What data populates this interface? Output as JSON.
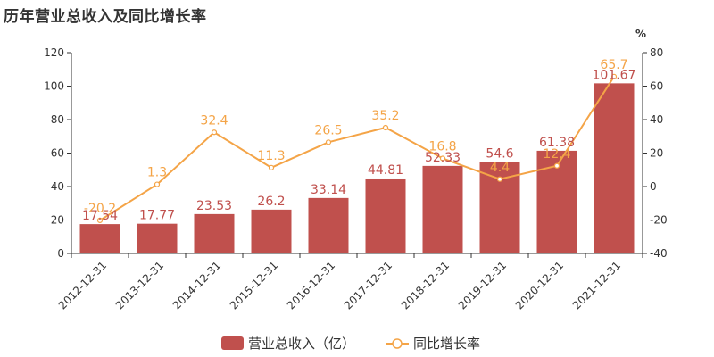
{
  "title": "历年营业总收入及同比增长率",
  "chart_data": {
    "type": "bar",
    "categories": [
      "2012-12-31",
      "2013-12-31",
      "2014-12-31",
      "2015-12-31",
      "2016-12-31",
      "2017-12-31",
      "2018-12-31",
      "2019-12-31",
      "2020-12-31",
      "2021-12-31"
    ],
    "series": [
      {
        "name": "营业总收入（亿）",
        "type": "bar",
        "axis": "left",
        "color": "#c0504d",
        "values": [
          17.54,
          17.77,
          23.53,
          26.2,
          33.14,
          44.81,
          52.33,
          54.6,
          61.38,
          101.67
        ],
        "labels": [
          "17.54",
          "17.77",
          "23.53",
          "26.2",
          "33.14",
          "44.81",
          "52.33",
          "54.6",
          "61.38",
          "101.67"
        ]
      },
      {
        "name": "同比增长率",
        "type": "line",
        "axis": "right",
        "color": "#f4a447",
        "values": [
          -20.2,
          1.3,
          32.4,
          11.3,
          26.5,
          35.2,
          16.8,
          4.4,
          12.4,
          65.7
        ],
        "labels": [
          "-20.2",
          "1.3",
          "32.4",
          "11.3",
          "26.5",
          "35.2",
          "16.8",
          "4.4",
          "12.4",
          "65.7"
        ]
      }
    ],
    "y_left": {
      "min": 0,
      "max": 120,
      "ticks": [
        "0",
        "20",
        "40",
        "60",
        "80",
        "100",
        "120"
      ]
    },
    "y_right": {
      "min": -40,
      "max": 80,
      "ticks": [
        "-40",
        "-20",
        "0",
        "20",
        "40",
        "60",
        "80"
      ],
      "unit": "%"
    },
    "grid": false,
    "legend": "bottom-center"
  }
}
